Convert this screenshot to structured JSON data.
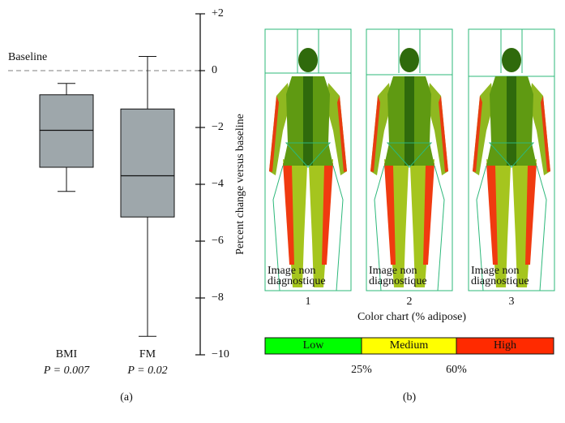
{
  "chart_data": {
    "type": "box",
    "categories": [
      "BMI",
      "FM"
    ],
    "sublabels": [
      "P = 0.007",
      "P = 0.02"
    ],
    "boxes": [
      {
        "whislo": -4.25,
        "q1": -3.4,
        "med": -2.1,
        "q3": -0.85,
        "whishi": -0.45
      },
      {
        "whislo": -9.35,
        "q1": -5.15,
        "med": -3.7,
        "q3": -1.35,
        "whishi": 0.5
      }
    ],
    "box_color": "#9ea7ab",
    "ylabel": "Percent change versus baseline",
    "baseline_label": "Baseline",
    "baseline_value": 0,
    "ylim": [
      -10,
      2
    ],
    "yticks": [
      {
        "value": -10,
        "label": "−10"
      },
      {
        "value": -8,
        "label": "−8"
      },
      {
        "value": -6,
        "label": "−6"
      },
      {
        "value": -4,
        "label": "−4"
      },
      {
        "value": -2,
        "label": "−2"
      },
      0,
      {
        "value": 2,
        "label": "+2"
      }
    ],
    "panel_label": "(a)"
  },
  "panel_b": {
    "images": [
      {
        "label": "1",
        "overlay": [
          "Image non",
          "diagnostique"
        ]
      },
      {
        "label": "2",
        "overlay": [
          "Image non",
          "diagnostique"
        ]
      },
      {
        "label": "3",
        "overlay": [
          "Image non",
          "diagnostique"
        ]
      }
    ],
    "color_chart": {
      "title": "Color chart (% adipose)",
      "segments": [
        {
          "label": "Low",
          "color": "#00ff00"
        },
        {
          "label": "Medium",
          "color": "#ffff00"
        },
        {
          "label": "High",
          "color": "#ff2a00"
        }
      ],
      "thresholds": [
        "25%",
        "60%"
      ]
    },
    "panel_label": "(b)"
  }
}
